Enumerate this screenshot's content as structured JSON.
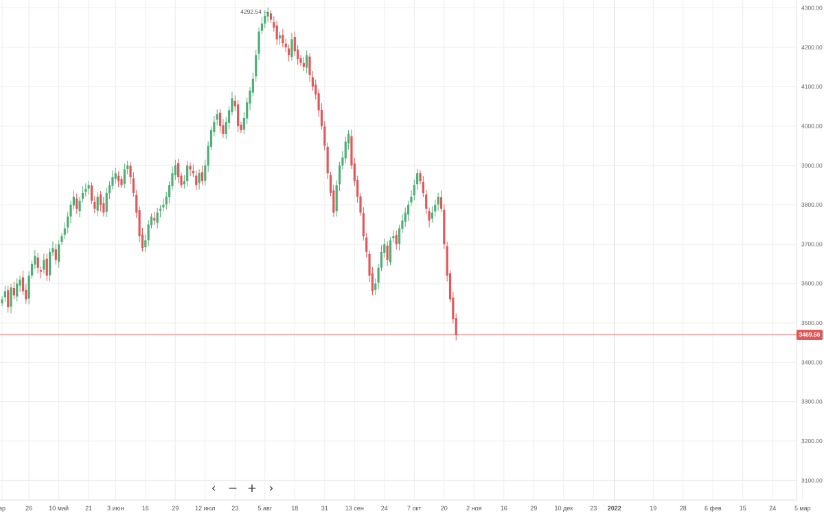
{
  "chart_data": {
    "type": "candlestick",
    "title": "",
    "xlabel": "",
    "ylabel": "",
    "ylim": [
      3050,
      4320
    ],
    "y_ticks": [
      3100,
      3200,
      3300,
      3400,
      3500,
      3600,
      3700,
      3800,
      3900,
      4000,
      4100,
      4200,
      4300
    ],
    "y_tick_labels": [
      "3100.00",
      "3200.00",
      "3300.00",
      "3400.00",
      "3500.00",
      "3600.00",
      "3700.00",
      "3800.00",
      "3900.00",
      "4000.00",
      "4100.00",
      "4200.00",
      "4300.00"
    ],
    "x_ticks": [
      {
        "label": "ар",
        "idx": 0
      },
      {
        "label": "26",
        "idx": 9
      },
      {
        "label": "10 май",
        "idx": 19
      },
      {
        "label": "21",
        "idx": 29
      },
      {
        "label": "3 июн",
        "idx": 38
      },
      {
        "label": "16",
        "idx": 48
      },
      {
        "label": "29",
        "idx": 58
      },
      {
        "label": "12 июл",
        "idx": 68
      },
      {
        "label": "23",
        "idx": 78
      },
      {
        "label": "5 авг",
        "idx": 88
      },
      {
        "label": "18",
        "idx": 98
      },
      {
        "label": "31",
        "idx": 108
      },
      {
        "label": "13 сен",
        "idx": 118
      },
      {
        "label": "24",
        "idx": 128
      },
      {
        "label": "7 окт",
        "idx": 138
      },
      {
        "label": "20",
        "idx": 148
      },
      {
        "label": "2 ноя",
        "idx": 158
      },
      {
        "label": "16",
        "idx": 168
      },
      {
        "label": "29",
        "idx": 178
      },
      {
        "label": "10 дек",
        "idx": 188
      },
      {
        "label": "23",
        "idx": 198
      },
      {
        "label": "2022",
        "idx": 205
      },
      {
        "label": "19",
        "idx": 218
      },
      {
        "label": "28",
        "idx": 228
      },
      {
        "label": "6 фев",
        "idx": 238
      },
      {
        "label": "15",
        "idx": 248
      },
      {
        "label": "24",
        "idx": 258
      },
      {
        "label": "5 мар",
        "idx": 268
      }
    ],
    "closes": [
      3560,
      3580,
      3540,
      3590,
      3570,
      3600,
      3610,
      3580,
      3560,
      3620,
      3650,
      3670,
      3640,
      3630,
      3660,
      3620,
      3680,
      3690,
      3660,
      3700,
      3720,
      3740,
      3770,
      3800,
      3820,
      3790,
      3810,
      3830,
      3840,
      3850,
      3810,
      3790,
      3820,
      3800,
      3780,
      3830,
      3850,
      3870,
      3880,
      3860,
      3850,
      3890,
      3900,
      3870,
      3830,
      3780,
      3720,
      3690,
      3710,
      3750,
      3770,
      3760,
      3780,
      3790,
      3800,
      3820,
      3850,
      3880,
      3900,
      3870,
      3850,
      3860,
      3900,
      3890,
      3880,
      3850,
      3880,
      3860,
      3900,
      3950,
      3990,
      4010,
      4030,
      4000,
      3980,
      4010,
      4040,
      4070,
      4050,
      4000,
      3990,
      4020,
      4060,
      4090,
      4120,
      4180,
      4240,
      4260,
      4280,
      4290,
      4270,
      4250,
      4220,
      4230,
      4210,
      4200,
      4180,
      4220,
      4190,
      4170,
      4160,
      4150,
      4180,
      4130,
      4100,
      4080,
      4040,
      4000,
      3950,
      3880,
      3830,
      3780,
      3850,
      3900,
      3920,
      3960,
      3980,
      3900,
      3860,
      3820,
      3780,
      3720,
      3680,
      3620,
      3580,
      3600,
      3640,
      3680,
      3700,
      3660,
      3710,
      3720,
      3700,
      3740,
      3760,
      3780,
      3800,
      3820,
      3850,
      3880,
      3860,
      3830,
      3790,
      3760,
      3780,
      3800,
      3820,
      3790,
      3700,
      3620,
      3560,
      3510,
      3469.56
    ],
    "max": 4292.54,
    "max_label": "4292.54",
    "last_price": 3469.56,
    "last_price_label": "3469.56",
    "colors": {
      "up": "#4caf73",
      "down": "#e25757",
      "grid": "#ececec",
      "price_line": "#e25757"
    }
  },
  "nav": {
    "prev": "‹",
    "zoom_out": "−",
    "zoom_in": "+",
    "next": "›"
  }
}
